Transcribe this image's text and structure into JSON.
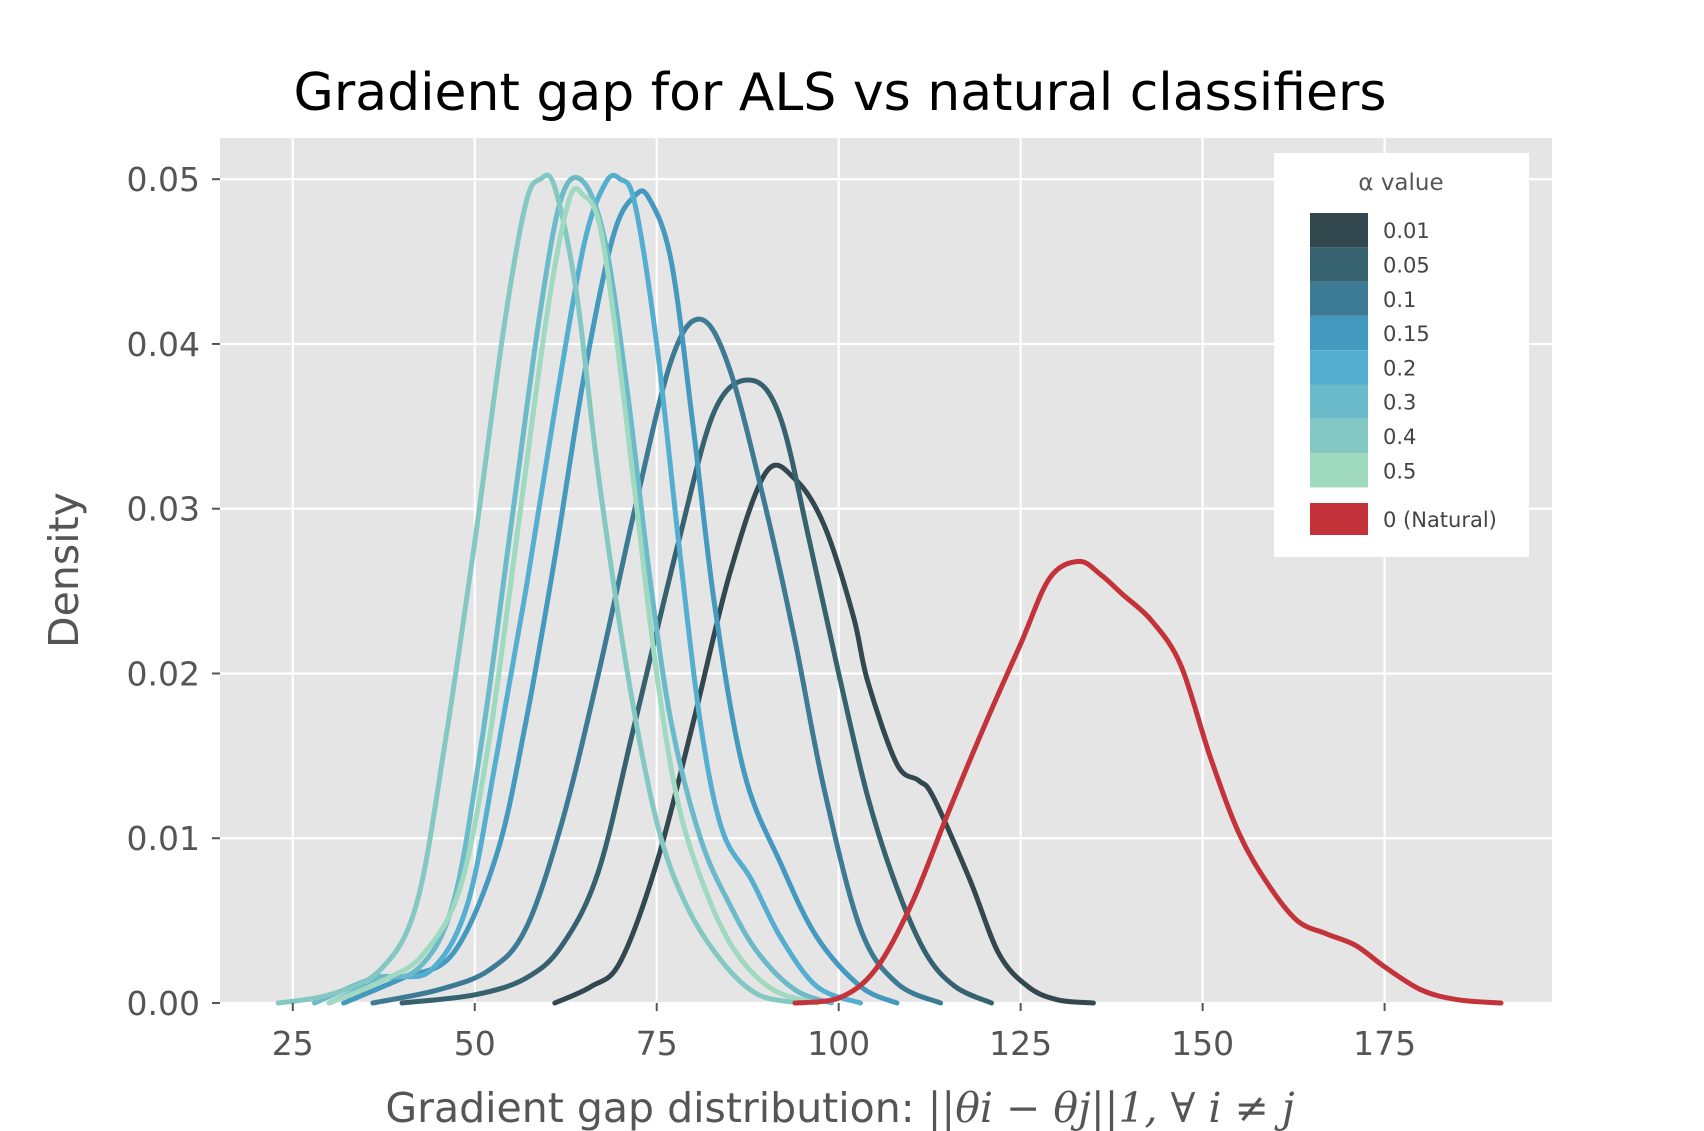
{
  "chart_data": {
    "type": "line",
    "title": "Gradient gap for ALS vs natural classifiers",
    "xlabel": {
      "prefix": "Gradient gap distribution: ",
      "math": "||θi − θj||1, ∀ i ≠ j"
    },
    "ylabel": "Density",
    "xlim": [
      15,
      198
    ],
    "ylim": [
      0,
      0.0525
    ],
    "xticks": [
      "25",
      "50",
      "75",
      "100",
      "125",
      "150",
      "175"
    ],
    "xtick_values": [
      25,
      50,
      75,
      100,
      125,
      150,
      175
    ],
    "yticks": [
      "0.00",
      "0.01",
      "0.02",
      "0.03",
      "0.04",
      "0.05"
    ],
    "ytick_values": [
      0,
      0.01,
      0.02,
      0.03,
      0.04,
      0.05
    ],
    "grid": true,
    "legend": {
      "title": "α value",
      "placement": "top-right"
    },
    "series": [
      {
        "name": "0.01",
        "color": "#33474f",
        "x": [
          61,
          66,
          70,
          75,
          80,
          85,
          90,
          94,
          98,
          102,
          104,
          108,
          111,
          113,
          118,
          122,
          126,
          130,
          135
        ],
        "y": [
          0,
          0.001,
          0.0025,
          0.0085,
          0.017,
          0.026,
          0.0322,
          0.0318,
          0.029,
          0.0235,
          0.0195,
          0.0145,
          0.0135,
          0.0125,
          0.0075,
          0.003,
          0.001,
          0.0002,
          0
        ]
      },
      {
        "name": "0.05",
        "color": "#36616f",
        "x": [
          40,
          50,
          57,
          62,
          67,
          72,
          78,
          83,
          88,
          92,
          96,
          100,
          104,
          108,
          112,
          116,
          121
        ],
        "y": [
          0,
          0.0005,
          0.0015,
          0.0035,
          0.008,
          0.017,
          0.028,
          0.036,
          0.0378,
          0.0355,
          0.028,
          0.02,
          0.0125,
          0.007,
          0.003,
          0.001,
          0
        ]
      },
      {
        "name": "0.1",
        "color": "#3d7b94",
        "x": [
          36,
          45,
          52,
          57,
          62,
          67,
          72,
          77,
          81,
          85,
          90,
          94,
          98,
          103,
          108,
          114
        ],
        "y": [
          0,
          0.0008,
          0.002,
          0.0045,
          0.011,
          0.02,
          0.03,
          0.039,
          0.0415,
          0.0385,
          0.03,
          0.022,
          0.013,
          0.0045,
          0.0012,
          0
        ]
      },
      {
        "name": "0.15",
        "color": "#4499be",
        "x": [
          32,
          40,
          47,
          53,
          57,
          61,
          65,
          69,
          72,
          74,
          77,
          80,
          83,
          87,
          92,
          97,
          103,
          108
        ],
        "y": [
          0,
          0.0015,
          0.003,
          0.009,
          0.017,
          0.027,
          0.038,
          0.0465,
          0.049,
          0.0488,
          0.045,
          0.035,
          0.024,
          0.014,
          0.0085,
          0.004,
          0.001,
          0
        ]
      },
      {
        "name": "0.2",
        "color": "#53aed0",
        "x": [
          30,
          38,
          44,
          49,
          53,
          57,
          61,
          65,
          68,
          70,
          72,
          75,
          78,
          81,
          84,
          88,
          92,
          97,
          103
        ],
        "y": [
          0,
          0.0015,
          0.002,
          0.006,
          0.015,
          0.025,
          0.036,
          0.046,
          0.0498,
          0.05,
          0.0485,
          0.04,
          0.028,
          0.017,
          0.0105,
          0.0075,
          0.004,
          0.001,
          0
        ]
      },
      {
        "name": "0.3",
        "color": "#6abac9",
        "x": [
          28,
          36,
          42,
          47,
          51,
          55,
          59,
          62,
          65,
          68,
          71,
          74,
          77,
          81,
          85,
          89,
          94,
          99
        ],
        "y": [
          0,
          0.0015,
          0.002,
          0.006,
          0.016,
          0.029,
          0.042,
          0.049,
          0.0498,
          0.046,
          0.037,
          0.026,
          0.017,
          0.01,
          0.006,
          0.003,
          0.0008,
          0
        ]
      },
      {
        "name": "0.4",
        "color": "#84c8c3",
        "x": [
          23,
          30,
          37,
          42,
          46,
          50,
          54,
          57,
          59,
          61,
          64,
          67,
          71,
          75,
          79,
          84,
          89,
          95
        ],
        "y": [
          0,
          0.0005,
          0.002,
          0.006,
          0.016,
          0.028,
          0.041,
          0.0485,
          0.05,
          0.0495,
          0.043,
          0.032,
          0.02,
          0.011,
          0.006,
          0.0025,
          0.0005,
          0
        ]
      },
      {
        "name": "0.5",
        "color": "#9ed9c0",
        "x": [
          30,
          38,
          43,
          48,
          52,
          56,
          60,
          63,
          65,
          67,
          69,
          72,
          75,
          78,
          82,
          86,
          91,
          97
        ],
        "y": [
          0,
          0.0015,
          0.003,
          0.007,
          0.016,
          0.029,
          0.042,
          0.0488,
          0.049,
          0.0475,
          0.042,
          0.031,
          0.02,
          0.012,
          0.0065,
          0.003,
          0.0008,
          0
        ]
      },
      {
        "name": "0 (Natural)",
        "color": "#c4323a",
        "x": [
          94,
          100,
          105,
          110,
          115,
          120,
          125,
          129,
          133,
          136,
          139,
          143,
          147,
          151,
          155,
          159,
          163,
          167,
          171,
          175,
          180,
          185,
          191
        ],
        "y": [
          0,
          0.0003,
          0.002,
          0.006,
          0.0115,
          0.0168,
          0.0218,
          0.0258,
          0.0268,
          0.026,
          0.0248,
          0.0232,
          0.0205,
          0.015,
          0.0103,
          0.0072,
          0.005,
          0.0042,
          0.0035,
          0.0022,
          0.0008,
          0.0002,
          0
        ]
      }
    ]
  }
}
